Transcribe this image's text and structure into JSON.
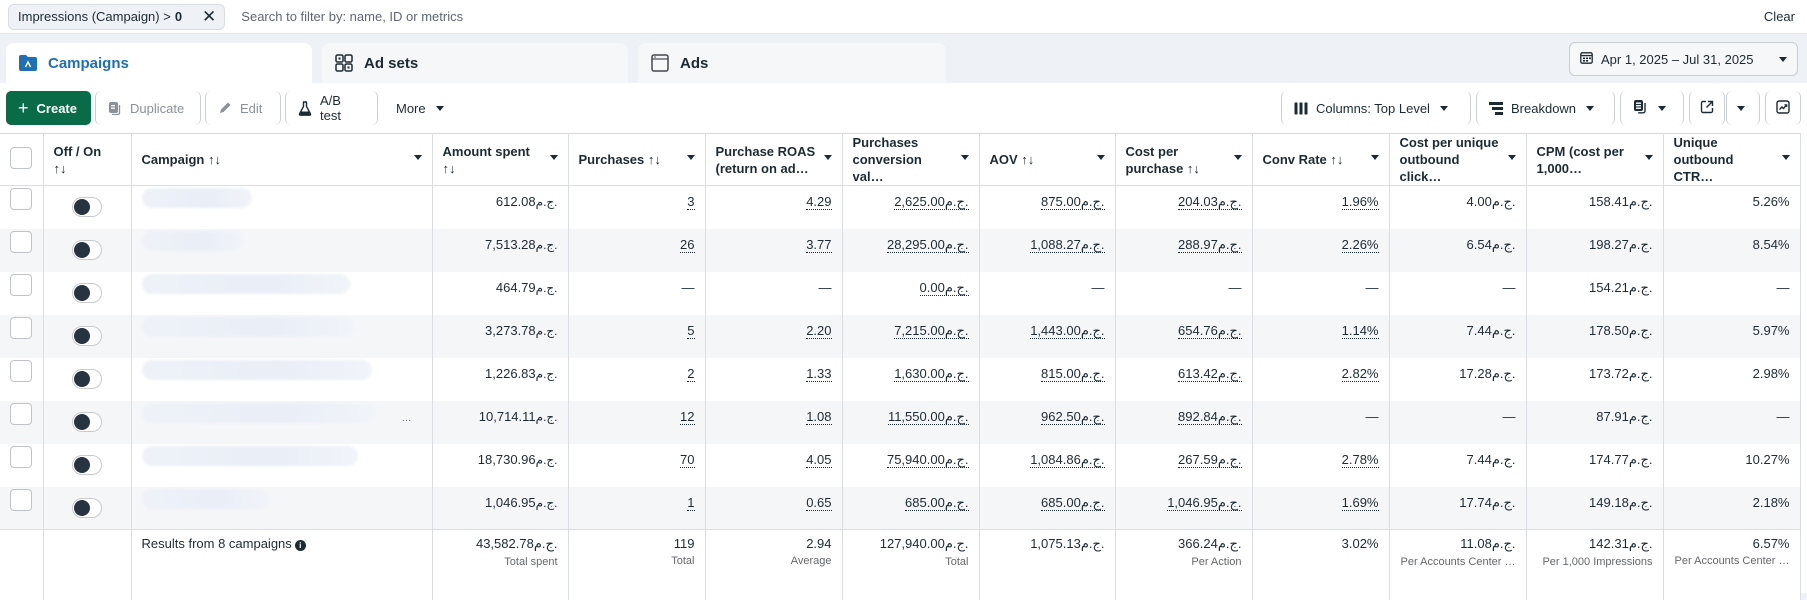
{
  "filter_bar": {
    "chip_label": "Impressions (Campaign) >",
    "chip_value": "0",
    "search_placeholder": "Search to filter by: name, ID or metrics",
    "clear_label": "Clear"
  },
  "tabs": [
    {
      "label": "Campaigns",
      "icon": "campaign-folder-icon",
      "active": true
    },
    {
      "label": "Ad sets",
      "icon": "ad-sets-grid-icon",
      "active": false
    },
    {
      "label": "Ads",
      "icon": "ad-window-icon",
      "active": false
    }
  ],
  "date_range": {
    "label": "Apr 1, 2025 – Jul 31, 2025",
    "icon": "calendar-icon"
  },
  "toolbar": {
    "create": "Create",
    "duplicate": "Duplicate",
    "edit": "Edit",
    "ab_test": "A/B test",
    "more": "More",
    "columns": "Columns: Top Level",
    "breakdown": "Breakdown"
  },
  "colors": {
    "accent": "#1f6fb5",
    "create_button": "#0a6b48",
    "toggle_knob": "#27343f",
    "row_alt": "#f5f6f8"
  },
  "currency": "ج.م.",
  "table": {
    "headers": {
      "off_on": "Off / On",
      "sort": "↑↓",
      "campaign": "Campaign ↑↓",
      "amount_spent": "Amount spent",
      "purchases": "Purchases ↑↓",
      "roas": "Purchase ROAS (return on ad…",
      "conv_value": "Purchases conversion val…",
      "aov": "AOV ↑↓",
      "cost_per_purchase": "Cost per purchase ↑↓",
      "conv_rate": "Conv Rate ↑↓",
      "cost_unique_click": "Cost per unique outbound click…",
      "cpm": "CPM (cost per 1,000…",
      "unique_ctr": "Unique outbound CTR…"
    },
    "rows": [
      {
        "spent": "612.08",
        "purchases": "3",
        "roas": "4.29",
        "conv_value": "2,625.00",
        "aov": "875.00",
        "cpp": "204.03",
        "conv_rate": "1.96%",
        "cpuc": "4.00",
        "cpm": "158.41",
        "ctr": "5.26%"
      },
      {
        "spent": "7,513.28",
        "purchases": "26",
        "roas": "3.77",
        "conv_value": "28,295.00",
        "aov": "1,088.27",
        "cpp": "288.97",
        "conv_rate": "2.26%",
        "cpuc": "6.54",
        "cpm": "198.27",
        "ctr": "8.54%"
      },
      {
        "spent": "464.79",
        "purchases": "—",
        "roas": "—",
        "conv_value": "0.00",
        "aov": "—",
        "cpp": "—",
        "conv_rate": "—",
        "cpuc": "—",
        "cpm": "154.21",
        "ctr": "—"
      },
      {
        "spent": "3,273.78",
        "purchases": "5",
        "roas": "2.20",
        "conv_value": "7,215.00",
        "aov": "1,443.00",
        "cpp": "654.76",
        "conv_rate": "1.14%",
        "cpuc": "7.44",
        "cpm": "178.50",
        "ctr": "5.97%"
      },
      {
        "spent": "1,226.83",
        "purchases": "2",
        "roas": "1.33",
        "conv_value": "1,630.00",
        "aov": "815.00",
        "cpp": "613.42",
        "conv_rate": "2.82%",
        "cpuc": "17.28",
        "cpm": "173.72",
        "ctr": "2.98%"
      },
      {
        "spent": "10,714.11",
        "purchases": "12",
        "roas": "1.08",
        "conv_value": "11,550.00",
        "aov": "962.50",
        "cpp": "892.84",
        "conv_rate": "—",
        "cpuc": "—",
        "cpm": "87.91",
        "ctr": "—"
      },
      {
        "spent": "18,730.96",
        "purchases": "70",
        "roas": "4.05",
        "conv_value": "75,940.00",
        "aov": "1,084.86",
        "cpp": "267.59",
        "conv_rate": "2.78%",
        "cpuc": "7.44",
        "cpm": "174.77",
        "ctr": "10.27%"
      },
      {
        "spent": "1,046.95",
        "purchases": "1",
        "roas": "0.65",
        "conv_value": "685.00",
        "aov": "685.00",
        "cpp": "1,046.95",
        "conv_rate": "1.69%",
        "cpuc": "17.74",
        "cpm": "149.18",
        "ctr": "2.18%"
      }
    ],
    "footer": {
      "results": "Results from 8 campaigns",
      "spent": "43,582.78",
      "spent_sub": "Total spent",
      "purchases": "119",
      "purchases_sub": "Total",
      "roas": "2.94",
      "roas_sub": "Average",
      "conv_value": "127,940.00",
      "conv_value_sub": "Total",
      "aov": "1,075.13",
      "cpp": "366.24",
      "cpp_sub": "Per Action",
      "conv_rate": "3.02%",
      "cpuc": "11.08",
      "cpuc_sub": "Per Accounts Center …",
      "cpm": "142.31",
      "cpm_sub": "Per 1,000 Impressions",
      "ctr": "6.57%",
      "ctr_sub": "Per Accounts Center …"
    }
  }
}
